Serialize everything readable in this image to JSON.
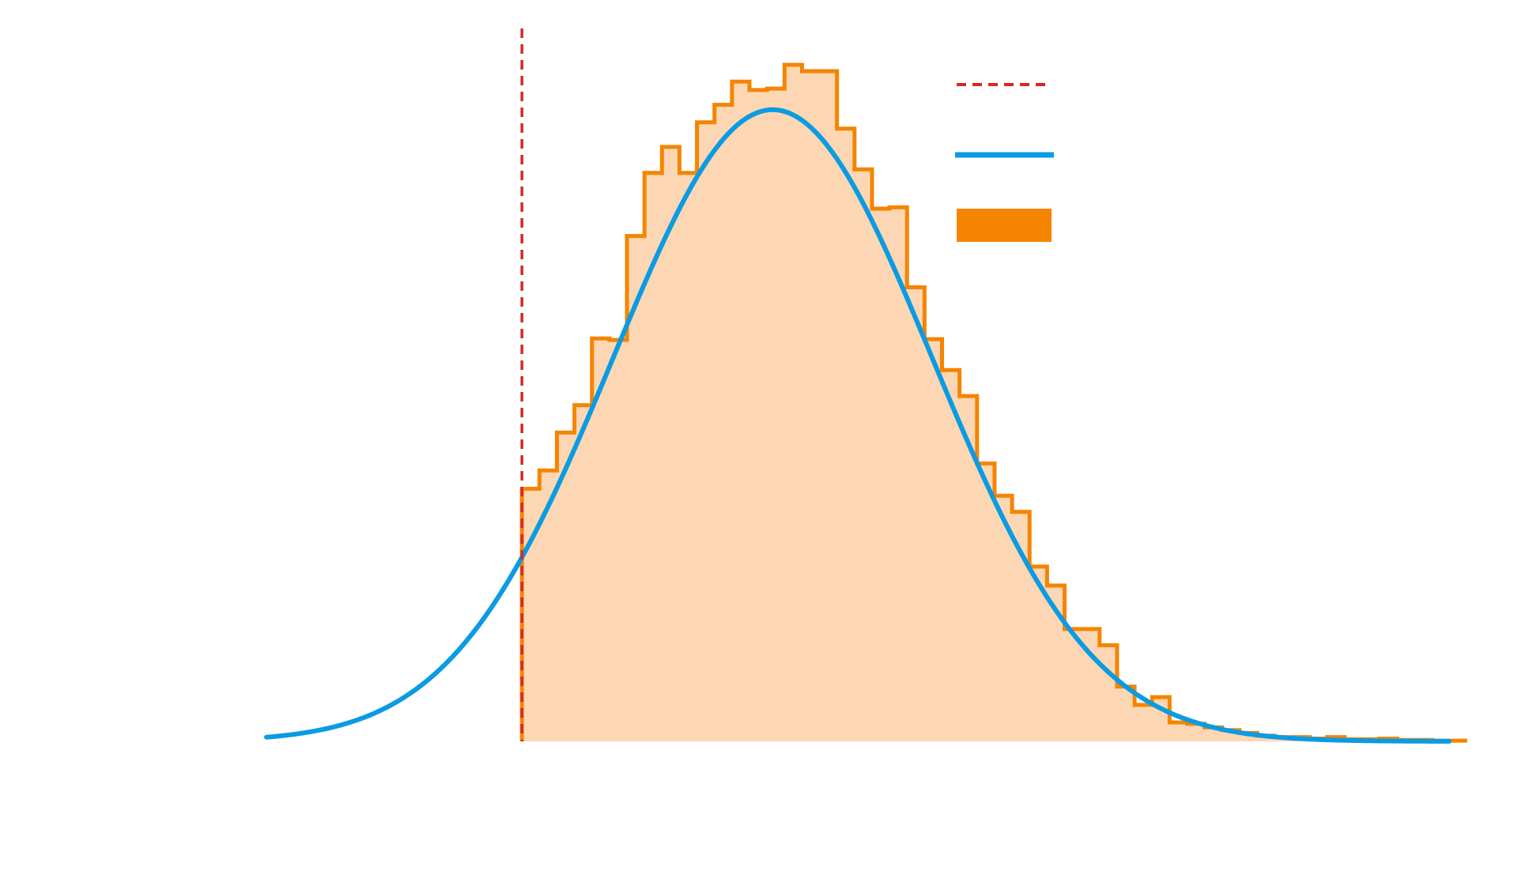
{
  "colors": {
    "threshold": "#d62728",
    "curve": "#0b9be3",
    "hist_edge": "#f58400",
    "hist_fill": "#fdd7b3"
  },
  "chart_data": {
    "type": "area",
    "title": "",
    "xlabel": "",
    "ylabel": "",
    "xlim": [
      0,
      100
    ],
    "ylim": [
      0,
      1.0
    ],
    "grid": false,
    "legend_position": "top-right",
    "threshold": {
      "name": "",
      "x": 21.6
    },
    "curve": {
      "name": "",
      "mean": 42.8,
      "sd": 13.5,
      "peak": 0.9,
      "x_start": 0,
      "x_end": 100
    },
    "histogram": {
      "name": "",
      "bin_start": 21.6,
      "bin_width": 1.48,
      "counts": [
        0.36,
        0.386,
        0.44,
        0.479,
        0.574,
        0.572,
        0.72,
        0.81,
        0.847,
        0.81,
        0.882,
        0.907,
        0.94,
        0.928,
        0.93,
        0.964,
        0.955,
        0.955,
        0.873,
        0.815,
        0.759,
        0.761,
        0.647,
        0.573,
        0.529,
        0.492,
        0.396,
        0.35,
        0.327,
        0.249,
        0.222,
        0.16,
        0.16,
        0.137,
        0.078,
        0.052,
        0.063,
        0.027,
        0.025,
        0.02,
        0.016,
        0.012,
        0.008,
        0.006,
        0.006,
        0.004,
        0.006,
        0.003,
        0.003,
        0.004,
        0.002,
        0.002,
        0.001,
        0.001
      ]
    }
  }
}
